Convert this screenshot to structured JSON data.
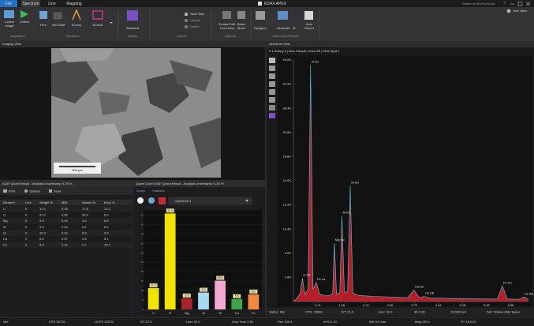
{
  "title_bar": {
    "tabs": [
      "File",
      "Spectrum",
      "Line",
      "Mapping"
    ],
    "app_title": "EDAX APEX",
    "review_mode": "Switch to Review Mode",
    "help": "?"
  },
  "ribbon": {
    "collect_image": [
      "Collect",
      "Image"
    ],
    "collect": "Collect",
    "rex": "ReX",
    "rex_value": "490,3568",
    "survey": "Survey",
    "normal": "Normal",
    "standard": "Standard",
    "save_new": "Save New",
    "update": "Update",
    "delete": "Delete",
    "drift": [
      "Enable Drift",
      "Correction"
    ],
    "batch": [
      "Batch",
      "Mode"
    ],
    "designer": "Designer",
    "generate": "Generate",
    "auto_report": [
      "Auto",
      "Report"
    ],
    "user": "User Apex",
    "groups": [
      "Acquisition",
      "Spectrum",
      "Quality",
      "Layout",
      "Options",
      "Advanced Reports"
    ]
  },
  "imaging_view": {
    "title": "Imaging View",
    "scale_bar": "500 µm"
  },
  "quant_result": {
    "title": "eZAF Quant Result - Analysis Uncertainty: 9.25 %",
    "toolbar": [
      "Print",
      "Options",
      "Tools"
    ],
    "columns": [
      "Element",
      "Line",
      "Weight %",
      "MDL",
      "Atomic %",
      "Error %"
    ],
    "rows": [
      [
        "C",
        "K",
        "11.3",
        "0.39",
        "17.6",
        "12.3"
      ],
      [
        "O",
        "K",
        "51.0",
        "0.06",
        "59.4",
        "8.6"
      ],
      [
        "Mg",
        "K",
        "5.9",
        "0.04",
        "4.6",
        "6.6"
      ],
      [
        "Al",
        "K",
        "9.0",
        "0.04",
        "6.2",
        "5.5"
      ],
      [
        "Si",
        "K",
        "15.3",
        "0.04",
        "8.9",
        "4.9"
      ],
      [
        "Ca",
        "K",
        "5.5",
        "0.07",
        "2.6",
        "5.1"
      ],
      [
        "Fe",
        "K",
        "8.0",
        "0.32",
        "2.7",
        "10.7"
      ]
    ]
  },
  "quant_chart": {
    "title": "Quant Chart eZAF Quant Result - Analysis Uncertainty: 9.25 %",
    "tabs": [
      "Graph",
      "Statistics"
    ],
    "spectrum_select": "Spectrum 1"
  },
  "spectrum_view": {
    "title": "Spectrum View",
    "status": [
      "Status: Idle",
      "CPS: 29968",
      "DT: 21.6",
      "Lsec: 30.0",
      "46 Cnts",
      "10.000 keV",
      "Det: Octane Elite Super"
    ]
  },
  "status_bar": [
    "Idle",
    "CPS 30719",
    "OCPS 22076",
    "DT 22.0",
    "Lsec 30.0",
    "Amp Time 3.84",
    "Res 125.4",
    "eV/Ch 10",
    "WD 9.5 mm",
    "Mag 130 x",
    "HT 15.0 kV"
  ],
  "chart_data": [
    {
      "type": "bar",
      "categories": [
        "C",
        "O",
        "Mg",
        "Al",
        "Si",
        "Ca",
        "Fe"
      ],
      "values": [
        11.3,
        51.0,
        5.9,
        9.0,
        15.3,
        5.5,
        8.0
      ],
      "value_labels": [
        "11.3",
        "51.0",
        "5.9",
        "9.0",
        "15.3",
        "5.5",
        "8.0"
      ],
      "colors": [
        "#f2e200",
        "#f2e200",
        "#a8242c",
        "#a9d9f0",
        "#f2a8d2",
        "#3aa84a",
        "#ef8a3a"
      ],
      "ylim": [
        0,
        52
      ],
      "yticks": [
        0,
        5,
        10,
        15,
        20,
        25,
        30,
        35,
        40,
        45,
        50
      ],
      "grid": true
    },
    {
      "type": "area",
      "title": "2:1 testing 3 | New Sample | Area 1B | EDS Spot 2",
      "x": [
        0,
        0.1,
        0.2,
        0.277,
        0.35,
        0.45,
        0.525,
        0.6,
        0.705,
        0.8,
        1.0,
        1.2,
        1.254,
        1.32,
        1.42,
        1.486,
        1.56,
        1.66,
        1.74,
        1.82,
        2.0,
        2.5,
        3.0,
        3.5,
        3.69,
        3.85,
        4.01,
        4.2,
        5.0,
        6.0,
        6.25,
        6.4,
        6.55,
        6.9,
        7.06,
        7.2
      ],
      "values": [
        0,
        600,
        1500,
        4600,
        1400,
        2500,
        47000,
        2500,
        3800,
        1500,
        1100,
        1400,
        11600,
        1500,
        1700,
        17000,
        1800,
        2000,
        23000,
        1700,
        1200,
        1000,
        900,
        750,
        2300,
        800,
        1000,
        700,
        600,
        500,
        500,
        3100,
        500,
        450,
        900,
        400
      ],
      "color": "#c8202a",
      "line_color": "#5cc4e0",
      "xlim": [
        0,
        7.2
      ],
      "xticks": [
        0.74,
        1.48,
        2.22,
        2.96,
        {
          "value": 3.7,
          "label": "3.70"
        },
        4.44,
        5.18,
        5.92,
        6.66
      ],
      "ylim": [
        0,
        48000
      ],
      "yticks": [
        {
          "value": 4800,
          "label": "4.8K"
        },
        {
          "value": 9600,
          "label": "9.6K"
        },
        {
          "value": 14400,
          "label": "14.4K"
        },
        {
          "value": 19200,
          "label": "19.2K"
        },
        {
          "value": 24000,
          "label": "24.0K"
        },
        {
          "value": 28800,
          "label": "28.8K"
        },
        {
          "value": 33600,
          "label": "33.6K"
        },
        {
          "value": 38400,
          "label": "38.4K"
        },
        {
          "value": 43200,
          "label": "43.2K"
        },
        {
          "value": 48000,
          "label": "48.0K"
        }
      ],
      "annotations": [
        {
          "text": "O Kα",
          "x": 0.525,
          "y": 47000
        },
        {
          "text": "C Kα",
          "x": 0.277,
          "y": 4600
        },
        {
          "text": "Fe Lα",
          "x": 0.705,
          "y": 3800
        },
        {
          "text": "Mg Kα",
          "x": 1.254,
          "y": 11600
        },
        {
          "text": "Al Kα",
          "x": 1.486,
          "y": 17000
        },
        {
          "text": "Si Kα",
          "x": 1.74,
          "y": 23000
        },
        {
          "text": "Ca Kα",
          "x": 3.69,
          "y": 2300
        },
        {
          "text": "Ca Kβ",
          "x": 4.01,
          "y": 1000
        },
        {
          "text": "Fe Kα",
          "x": 6.4,
          "y": 3100
        },
        {
          "text": "Fe Kβ",
          "x": 7.06,
          "y": 900
        }
      ]
    }
  ]
}
